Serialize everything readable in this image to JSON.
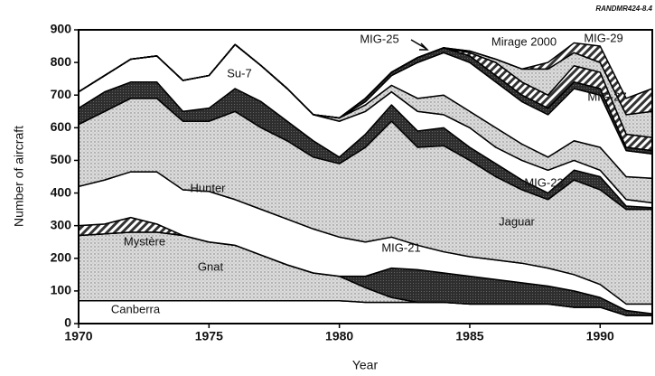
{
  "chart_data": {
    "type": "stacked_area",
    "source": "RANDMR424-8.4",
    "xlabel": "Year",
    "ylabel": "Number of aircraft",
    "x": [
      1970,
      1971,
      1972,
      1973,
      1974,
      1975,
      1976,
      1977,
      1978,
      1979,
      1980,
      1981,
      1982,
      1983,
      1984,
      1985,
      1986,
      1987,
      1988,
      1989,
      1990,
      1991,
      1992
    ],
    "xlim": [
      1970,
      1992
    ],
    "xticks": [
      1970,
      1975,
      1980,
      1985,
      1990
    ],
    "ylim": [
      0,
      900
    ],
    "yticks": [
      0,
      100,
      200,
      300,
      400,
      500,
      600,
      700,
      800,
      900
    ],
    "series": [
      {
        "name": "Canberra",
        "color": "#ffffff",
        "pattern": "solid",
        "values": [
          70,
          70,
          70,
          70,
          70,
          70,
          70,
          70,
          70,
          70,
          70,
          65,
          65,
          65,
          65,
          60,
          60,
          60,
          60,
          50,
          50,
          25,
          25
        ]
      },
      {
        "name": "Gnat",
        "color": "#d8d8d8",
        "pattern": "dots",
        "values": [
          200,
          205,
          210,
          210,
          200,
          180,
          170,
          140,
          110,
          85,
          75,
          45,
          15,
          0,
          0,
          0,
          0,
          0,
          0,
          0,
          0,
          0,
          0
        ]
      },
      {
        "color": "#3a3a3a",
        "pattern": "dark",
        "values": [
          0,
          0,
          0,
          0,
          0,
          0,
          0,
          0,
          0,
          0,
          0,
          35,
          90,
          100,
          90,
          85,
          75,
          65,
          55,
          50,
          30,
          15,
          5
        ]
      },
      {
        "name": "Mystère",
        "color": "#888888",
        "pattern": "hatch",
        "values": [
          30,
          30,
          45,
          25,
          0,
          0,
          0,
          0,
          0,
          0,
          0,
          0,
          0,
          0,
          0,
          0,
          0,
          0,
          0,
          0,
          0,
          0,
          0
        ]
      },
      {
        "name": "Hunter",
        "color": "#ffffff",
        "pattern": "solid",
        "values": [
          120,
          135,
          140,
          160,
          140,
          155,
          140,
          140,
          140,
          135,
          120,
          105,
          95,
          75,
          65,
          60,
          60,
          60,
          55,
          50,
          40,
          20,
          30
        ]
      },
      {
        "name": "MIG-21",
        "color": "#d8d8d8",
        "pattern": "dots",
        "values": [
          190,
          210,
          225,
          225,
          210,
          215,
          270,
          250,
          240,
          220,
          225,
          290,
          355,
          300,
          325,
          295,
          255,
          225,
          210,
          290,
          290,
          290,
          290
        ]
      },
      {
        "color": "#3a3a3a",
        "pattern": "dark",
        "values": [
          50,
          60,
          50,
          50,
          30,
          40,
          70,
          80,
          60,
          50,
          20,
          40,
          50,
          50,
          55,
          40,
          40,
          30,
          20,
          30,
          40,
          10,
          5
        ]
      },
      {
        "name": "Su-7",
        "color": "#ffffff",
        "pattern": "solid",
        "values": [
          50,
          50,
          70,
          80,
          95,
          100,
          135,
          110,
          100,
          80,
          110,
          70,
          40,
          60,
          40,
          60,
          50,
          60,
          70,
          30,
          20,
          20,
          15
        ]
      },
      {
        "name": "Jaguar",
        "color": "#d8d8d8",
        "pattern": "dots",
        "values": [
          0,
          0,
          0,
          0,
          0,
          0,
          0,
          0,
          0,
          0,
          10,
          20,
          20,
          40,
          60,
          50,
          60,
          50,
          40,
          60,
          70,
          70,
          75
        ]
      },
      {
        "name": "MIG-23",
        "color": "#ffffff",
        "pattern": "solid",
        "values": [
          0,
          0,
          0,
          0,
          0,
          0,
          0,
          0,
          0,
          0,
          0,
          10,
          30,
          110,
          130,
          150,
          140,
          130,
          130,
          160,
          160,
          80,
          75
        ]
      },
      {
        "name": "MIG-25",
        "color": "#1a1a1a",
        "pattern": "dark",
        "values": [
          0,
          0,
          0,
          0,
          0,
          0,
          0,
          0,
          0,
          0,
          0,
          10,
          10,
          15,
          15,
          20,
          20,
          20,
          20,
          20,
          20,
          10,
          10
        ]
      },
      {
        "name": "MIG-27",
        "color": "#888888",
        "pattern": "hatch",
        "values": [
          0,
          0,
          0,
          0,
          0,
          0,
          0,
          0,
          0,
          0,
          0,
          0,
          0,
          0,
          0,
          10,
          40,
          40,
          40,
          50,
          50,
          40,
          40
        ]
      },
      {
        "name": "Mirage 2000",
        "color": "#e4e4e4",
        "pattern": "dots",
        "values": [
          0,
          0,
          0,
          0,
          0,
          0,
          0,
          0,
          0,
          0,
          0,
          0,
          0,
          0,
          0,
          5,
          10,
          40,
          80,
          40,
          30,
          60,
          80
        ]
      },
      {
        "name": "MIG-29",
        "color": "#888888",
        "pattern": "hatch",
        "values": [
          0,
          0,
          0,
          0,
          0,
          0,
          0,
          0,
          0,
          0,
          0,
          0,
          0,
          0,
          0,
          0,
          0,
          0,
          20,
          30,
          50,
          50,
          70
        ]
      }
    ]
  }
}
